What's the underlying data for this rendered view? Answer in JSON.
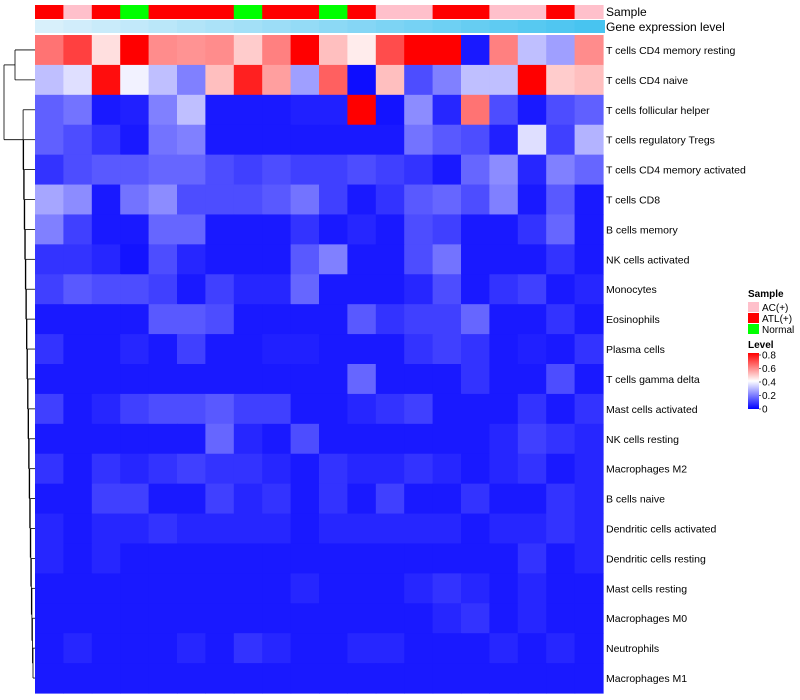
{
  "chart_data": {
    "type": "heatmap",
    "title": "",
    "columns": 20,
    "color_scale": {
      "min": 0,
      "max": 0.8,
      "low": "#0000FF",
      "mid": "#FFFFFF",
      "high": "#FF0000",
      "midpoint": 0.4,
      "ticks": [
        "0.8",
        "0.6",
        "0.4",
        "0.2",
        "0"
      ]
    },
    "annotations": {
      "sample_label": "Sample",
      "expression_label": "Gene expression level",
      "sample_groups": [
        "ATL(+)",
        "AC(+)",
        "ATL(+)",
        "Normal",
        "ATL(+)",
        "ATL(+)",
        "ATL(+)",
        "Normal",
        "ATL(+)",
        "ATL(+)",
        "Normal",
        "ATL(+)",
        "AC(+)",
        "AC(+)",
        "ATL(+)",
        "ATL(+)",
        "AC(+)",
        "AC(+)",
        "ATL(+)",
        "AC(+)"
      ],
      "expression_levels": [
        0.05,
        0.1,
        0.15,
        0.2,
        0.25,
        0.3,
        0.35,
        0.4,
        0.45,
        0.5,
        0.55,
        0.6,
        0.65,
        0.7,
        0.75,
        0.8,
        0.85,
        0.9,
        0.95,
        1.0
      ]
    },
    "legend": {
      "sample_title": "Sample",
      "sample_items": [
        {
          "label": "AC(+)",
          "color": "#FFC0CB"
        },
        {
          "label": "ATL(+)",
          "color": "#FF0000"
        },
        {
          "label": "Normal",
          "color": "#00FF00"
        }
      ],
      "level_title": "Level"
    },
    "rows": [
      {
        "label": "T cells CD4 memory resting",
        "values": [
          0.62,
          0.7,
          0.45,
          0.8,
          0.58,
          0.57,
          0.58,
          0.48,
          0.6,
          0.8,
          0.5,
          0.43,
          0.68,
          0.8,
          0.8,
          0.04,
          0.6,
          0.3,
          0.25,
          0.58
        ]
      },
      {
        "label": "T cells CD4 naive",
        "values": [
          0.3,
          0.35,
          0.78,
          0.38,
          0.3,
          0.2,
          0.5,
          0.75,
          0.55,
          0.25,
          0.65,
          0.02,
          0.5,
          0.12,
          0.2,
          0.3,
          0.3,
          0.8,
          0.48,
          0.5
        ]
      },
      {
        "label": "T cells follicular helper",
        "values": [
          0.15,
          0.18,
          0.04,
          0.05,
          0.2,
          0.3,
          0.04,
          0.04,
          0.04,
          0.05,
          0.05,
          0.8,
          0.03,
          0.22,
          0.06,
          0.62,
          0.12,
          0.04,
          0.12,
          0.15
        ]
      },
      {
        "label": "T cells regulatory  Tregs",
        "values": [
          0.15,
          0.12,
          0.08,
          0.04,
          0.18,
          0.2,
          0.04,
          0.04,
          0.04,
          0.04,
          0.04,
          0.04,
          0.04,
          0.18,
          0.14,
          0.12,
          0.05,
          0.35,
          0.1,
          0.28
        ]
      },
      {
        "label": "T cells CD4 memory activated",
        "values": [
          0.08,
          0.12,
          0.14,
          0.14,
          0.16,
          0.16,
          0.12,
          0.1,
          0.12,
          0.1,
          0.1,
          0.12,
          0.1,
          0.08,
          0.04,
          0.16,
          0.22,
          0.06,
          0.2,
          0.16
        ]
      },
      {
        "label": "T cells CD8",
        "values": [
          0.26,
          0.22,
          0.04,
          0.18,
          0.22,
          0.12,
          0.12,
          0.12,
          0.14,
          0.18,
          0.1,
          0.04,
          0.08,
          0.14,
          0.16,
          0.12,
          0.2,
          0.04,
          0.14,
          0.04
        ]
      },
      {
        "label": "B cells memory",
        "values": [
          0.2,
          0.1,
          0.04,
          0.04,
          0.16,
          0.16,
          0.04,
          0.04,
          0.04,
          0.08,
          0.04,
          0.06,
          0.04,
          0.12,
          0.1,
          0.04,
          0.04,
          0.08,
          0.16,
          0.04
        ]
      },
      {
        "label": "NK cells activated",
        "values": [
          0.08,
          0.08,
          0.06,
          0.03,
          0.12,
          0.06,
          0.04,
          0.04,
          0.04,
          0.14,
          0.2,
          0.04,
          0.04,
          0.12,
          0.18,
          0.04,
          0.04,
          0.04,
          0.08,
          0.04
        ]
      },
      {
        "label": "Monocytes",
        "values": [
          0.1,
          0.14,
          0.12,
          0.12,
          0.1,
          0.04,
          0.1,
          0.06,
          0.06,
          0.16,
          0.04,
          0.04,
          0.04,
          0.06,
          0.12,
          0.04,
          0.08,
          0.1,
          0.04,
          0.06
        ]
      },
      {
        "label": "Eosinophils",
        "values": [
          0.04,
          0.04,
          0.04,
          0.04,
          0.14,
          0.14,
          0.12,
          0.04,
          0.04,
          0.04,
          0.04,
          0.14,
          0.08,
          0.1,
          0.1,
          0.16,
          0.04,
          0.04,
          0.08,
          0.04
        ]
      },
      {
        "label": "Plasma cells",
        "values": [
          0.08,
          0.04,
          0.04,
          0.06,
          0.04,
          0.1,
          0.04,
          0.04,
          0.05,
          0.05,
          0.04,
          0.04,
          0.04,
          0.08,
          0.1,
          0.08,
          0.04,
          0.05,
          0.04,
          0.08
        ]
      },
      {
        "label": "T cells gamma delta",
        "values": [
          0.04,
          0.04,
          0.04,
          0.04,
          0.04,
          0.04,
          0.04,
          0.04,
          0.04,
          0.04,
          0.04,
          0.16,
          0.04,
          0.04,
          0.04,
          0.08,
          0.04,
          0.04,
          0.12,
          0.04
        ]
      },
      {
        "label": "Mast cells activated",
        "values": [
          0.1,
          0.04,
          0.06,
          0.1,
          0.12,
          0.12,
          0.14,
          0.1,
          0.1,
          0.04,
          0.04,
          0.06,
          0.08,
          0.1,
          0.04,
          0.04,
          0.04,
          0.08,
          0.04,
          0.08
        ]
      },
      {
        "label": "NK cells resting",
        "values": [
          0.04,
          0.04,
          0.04,
          0.04,
          0.04,
          0.04,
          0.16,
          0.06,
          0.04,
          0.12,
          0.04,
          0.04,
          0.04,
          0.04,
          0.04,
          0.04,
          0.06,
          0.1,
          0.08,
          0.06
        ]
      },
      {
        "label": "Macrophages M2",
        "values": [
          0.08,
          0.04,
          0.08,
          0.06,
          0.08,
          0.1,
          0.08,
          0.08,
          0.06,
          0.04,
          0.08,
          0.06,
          0.06,
          0.08,
          0.06,
          0.04,
          0.06,
          0.08,
          0.04,
          0.06
        ]
      },
      {
        "label": "B cells naive",
        "values": [
          0.04,
          0.04,
          0.1,
          0.1,
          0.04,
          0.04,
          0.1,
          0.06,
          0.08,
          0.04,
          0.08,
          0.04,
          0.1,
          0.04,
          0.04,
          0.08,
          0.04,
          0.04,
          0.08,
          0.06
        ]
      },
      {
        "label": "Dendritic cells activated",
        "values": [
          0.06,
          0.04,
          0.06,
          0.06,
          0.08,
          0.06,
          0.06,
          0.06,
          0.06,
          0.04,
          0.06,
          0.06,
          0.06,
          0.06,
          0.06,
          0.04,
          0.06,
          0.06,
          0.08,
          0.06
        ]
      },
      {
        "label": "Dendritic cells resting",
        "values": [
          0.06,
          0.04,
          0.06,
          0.04,
          0.04,
          0.04,
          0.04,
          0.04,
          0.04,
          0.04,
          0.04,
          0.04,
          0.04,
          0.04,
          0.04,
          0.04,
          0.04,
          0.08,
          0.04,
          0.06
        ]
      },
      {
        "label": "Mast cells resting",
        "values": [
          0.04,
          0.04,
          0.04,
          0.04,
          0.04,
          0.04,
          0.04,
          0.04,
          0.04,
          0.06,
          0.04,
          0.04,
          0.04,
          0.06,
          0.08,
          0.06,
          0.04,
          0.06,
          0.04,
          0.04
        ]
      },
      {
        "label": "Macrophages M0",
        "values": [
          0.04,
          0.04,
          0.04,
          0.04,
          0.04,
          0.04,
          0.04,
          0.04,
          0.04,
          0.04,
          0.04,
          0.04,
          0.04,
          0.04,
          0.06,
          0.08,
          0.04,
          0.06,
          0.04,
          0.04
        ]
      },
      {
        "label": "Neutrophils",
        "values": [
          0.04,
          0.06,
          0.04,
          0.04,
          0.04,
          0.06,
          0.04,
          0.08,
          0.06,
          0.04,
          0.04,
          0.06,
          0.06,
          0.04,
          0.04,
          0.04,
          0.06,
          0.04,
          0.06,
          0.04
        ]
      },
      {
        "label": "Macrophages M1",
        "values": [
          0.04,
          0.04,
          0.04,
          0.04,
          0.04,
          0.04,
          0.04,
          0.04,
          0.04,
          0.04,
          0.04,
          0.04,
          0.04,
          0.04,
          0.04,
          0.04,
          0.04,
          0.04,
          0.04,
          0.04
        ]
      }
    ]
  }
}
